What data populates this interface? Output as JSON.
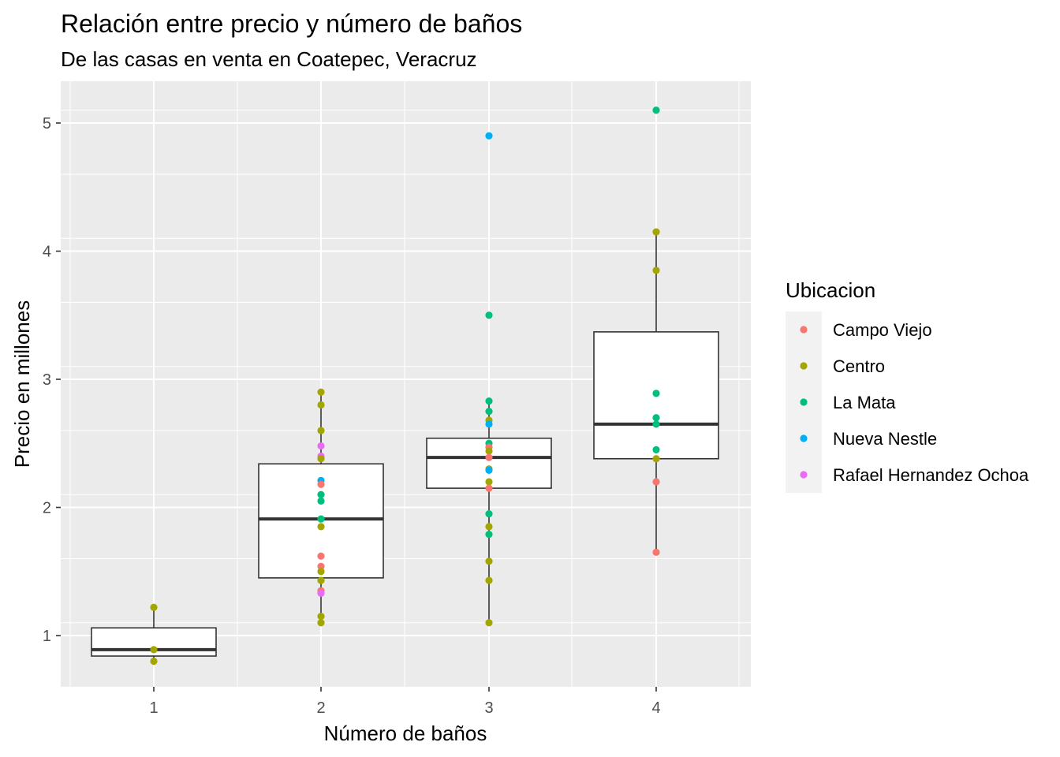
{
  "chart_data": {
    "type": "boxplot-with-points",
    "title": "Relación entre precio y número de baños",
    "subtitle": "De las casas en venta en Coatepec, Veracruz",
    "xlabel": "Número de baños",
    "ylabel": "Precio en millones",
    "categories": [
      "1",
      "2",
      "3",
      "4"
    ],
    "x_ticks": [
      "1",
      "2",
      "3",
      "4"
    ],
    "y_ticks": [
      1,
      2,
      3,
      4,
      5
    ],
    "ylim": [
      0.6,
      5.3
    ],
    "grid": true,
    "legend": {
      "title": "Ubicacion",
      "position": "right",
      "entries": [
        {
          "name": "Campo Viejo",
          "color": "#F8766D"
        },
        {
          "name": "Centro",
          "color": "#A3A500"
        },
        {
          "name": "La Mata",
          "color": "#00BF7D"
        },
        {
          "name": "Nueva Nestle",
          "color": "#00B0F6"
        },
        {
          "name": "Rafael Hernandez Ochoa",
          "color": "#E76BF3"
        }
      ]
    },
    "boxes": [
      {
        "x": "1",
        "lower_whisker": 0.8,
        "q1": 0.84,
        "median": 0.89,
        "q3": 1.06,
        "upper_whisker": 1.22
      },
      {
        "x": "2",
        "lower_whisker": 1.1,
        "q1": 1.45,
        "median": 1.91,
        "q3": 2.34,
        "upper_whisker": 2.9
      },
      {
        "x": "3",
        "lower_whisker": 1.1,
        "q1": 2.15,
        "median": 2.39,
        "q3": 2.54,
        "upper_whisker": 2.83
      },
      {
        "x": "4",
        "lower_whisker": 1.65,
        "q1": 2.38,
        "median": 2.65,
        "q3": 3.37,
        "upper_whisker": 4.15
      }
    ],
    "points": [
      {
        "x": "1",
        "y": 1.22,
        "group": "Centro"
      },
      {
        "x": "1",
        "y": 0.89,
        "group": "Centro"
      },
      {
        "x": "1",
        "y": 0.8,
        "group": "Centro"
      },
      {
        "x": "2",
        "y": 2.9,
        "group": "Centro"
      },
      {
        "x": "2",
        "y": 2.8,
        "group": "Centro"
      },
      {
        "x": "2",
        "y": 2.6,
        "group": "Centro"
      },
      {
        "x": "2",
        "y": 2.48,
        "group": "Rafael Hernandez Ochoa"
      },
      {
        "x": "2",
        "y": 2.4,
        "group": "Rafael Hernandez Ochoa"
      },
      {
        "x": "2",
        "y": 2.38,
        "group": "Centro"
      },
      {
        "x": "2",
        "y": 2.21,
        "group": "Nueva Nestle"
      },
      {
        "x": "2",
        "y": 2.18,
        "group": "Campo Viejo"
      },
      {
        "x": "2",
        "y": 2.1,
        "group": "La Mata"
      },
      {
        "x": "2",
        "y": 2.05,
        "group": "La Mata"
      },
      {
        "x": "2",
        "y": 1.91,
        "group": "La Mata"
      },
      {
        "x": "2",
        "y": 1.85,
        "group": "Centro"
      },
      {
        "x": "2",
        "y": 1.62,
        "group": "Campo Viejo"
      },
      {
        "x": "2",
        "y": 1.54,
        "group": "Campo Viejo"
      },
      {
        "x": "2",
        "y": 1.5,
        "group": "Centro"
      },
      {
        "x": "2",
        "y": 1.43,
        "group": "Centro"
      },
      {
        "x": "2",
        "y": 1.35,
        "group": "Campo Viejo"
      },
      {
        "x": "2",
        "y": 1.33,
        "group": "Rafael Hernandez Ochoa"
      },
      {
        "x": "2",
        "y": 1.15,
        "group": "Centro"
      },
      {
        "x": "2",
        "y": 1.1,
        "group": "Centro"
      },
      {
        "x": "3",
        "y": 4.9,
        "group": "Nueva Nestle"
      },
      {
        "x": "3",
        "y": 3.5,
        "group": "La Mata"
      },
      {
        "x": "3",
        "y": 2.83,
        "group": "La Mata"
      },
      {
        "x": "3",
        "y": 2.75,
        "group": "La Mata"
      },
      {
        "x": "3",
        "y": 2.68,
        "group": "Centro"
      },
      {
        "x": "3",
        "y": 2.65,
        "group": "Nueva Nestle"
      },
      {
        "x": "3",
        "y": 2.5,
        "group": "La Mata"
      },
      {
        "x": "3",
        "y": 2.47,
        "group": "Campo Viejo"
      },
      {
        "x": "3",
        "y": 2.44,
        "group": "Centro"
      },
      {
        "x": "3",
        "y": 2.39,
        "group": "Campo Viejo"
      },
      {
        "x": "3",
        "y": 2.3,
        "group": "Centro"
      },
      {
        "x": "3",
        "y": 2.29,
        "group": "Nueva Nestle"
      },
      {
        "x": "3",
        "y": 2.2,
        "group": "Centro"
      },
      {
        "x": "3",
        "y": 2.15,
        "group": "Campo Viejo"
      },
      {
        "x": "3",
        "y": 1.95,
        "group": "La Mata"
      },
      {
        "x": "3",
        "y": 1.85,
        "group": "Centro"
      },
      {
        "x": "3",
        "y": 1.79,
        "group": "La Mata"
      },
      {
        "x": "3",
        "y": 1.58,
        "group": "Centro"
      },
      {
        "x": "3",
        "y": 1.43,
        "group": "Centro"
      },
      {
        "x": "3",
        "y": 1.1,
        "group": "Centro"
      },
      {
        "x": "4",
        "y": 5.1,
        "group": "La Mata"
      },
      {
        "x": "4",
        "y": 4.15,
        "group": "Centro"
      },
      {
        "x": "4",
        "y": 3.85,
        "group": "Centro"
      },
      {
        "x": "4",
        "y": 2.89,
        "group": "La Mata"
      },
      {
        "x": "4",
        "y": 2.7,
        "group": "La Mata"
      },
      {
        "x": "4",
        "y": 2.65,
        "group": "La Mata"
      },
      {
        "x": "4",
        "y": 2.45,
        "group": "La Mata"
      },
      {
        "x": "4",
        "y": 2.38,
        "group": "Centro"
      },
      {
        "x": "4",
        "y": 2.2,
        "group": "Campo Viejo"
      },
      {
        "x": "4",
        "y": 1.65,
        "group": "Campo Viejo"
      }
    ]
  }
}
